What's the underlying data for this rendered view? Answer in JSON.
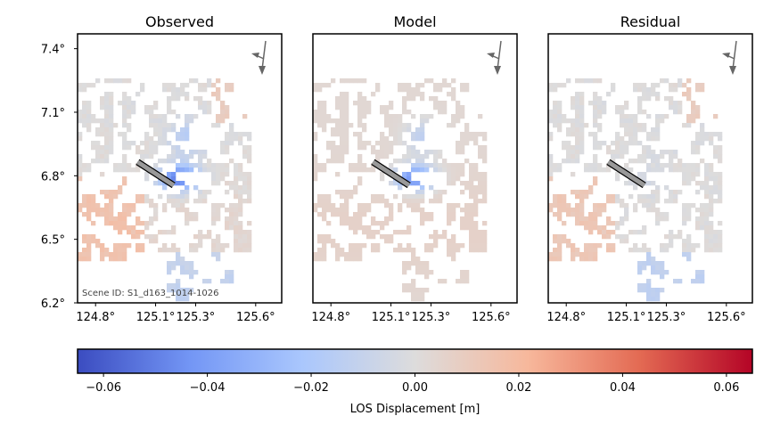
{
  "chart_data": {
    "type": "heatmap",
    "panels": [
      {
        "title": "Observed",
        "scene_label": "Scene ID: S1_d163_1014-1026"
      },
      {
        "title": "Model"
      },
      {
        "title": "Residual"
      }
    ],
    "x_ticks": [
      "124.8°",
      "125.1°",
      "125.3°",
      "125.6°"
    ],
    "x_tick_values": [
      124.8,
      125.1,
      125.3,
      125.6
    ],
    "y_ticks": [
      "7.4°",
      "7.1°",
      "6.8°",
      "6.5°",
      "6.2°"
    ],
    "y_tick_values": [
      7.4,
      7.1,
      6.8,
      6.5,
      6.2
    ],
    "xlim": [
      124.71,
      125.73
    ],
    "ylim": [
      6.2,
      7.47
    ],
    "colorbar": {
      "label": "LOS Displacement [m]",
      "range": [
        -0.065,
        0.065
      ],
      "ticks": [
        "−0.06",
        "−0.04",
        "−0.02",
        "0.00",
        "0.02",
        "0.04",
        "0.06"
      ],
      "tick_values": [
        -0.06,
        -0.04,
        -0.02,
        0.0,
        0.02,
        0.04,
        0.06
      ],
      "colormap": "coolwarm",
      "stops": [
        "#3b4cc0",
        "#7396f5",
        "#aac7fd",
        "#dddcdc",
        "#f7b89c",
        "#e36a53",
        "#b40426"
      ]
    },
    "fault_trace": {
      "lon": [
        125.01,
        125.19
      ],
      "lat": [
        6.865,
        6.755
      ]
    },
    "fault_color": "#999999",
    "heading_arrow_color": "#666666"
  }
}
